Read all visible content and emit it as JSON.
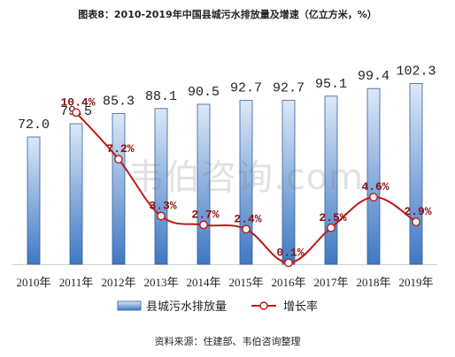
{
  "chart_data": {
    "type": "bar",
    "title": "图表8：2010-2019年中国县城污水排放量及增速（亿立方米，%）",
    "categories": [
      "2010年",
      "2011年",
      "2012年",
      "2013年",
      "2014年",
      "2015年",
      "2016年",
      "2017年",
      "2018年",
      "2019年"
    ],
    "series": [
      {
        "name": "县城污水排放量",
        "type": "bar",
        "values": [
          72.0,
          79.5,
          85.3,
          88.1,
          90.5,
          92.7,
          92.7,
          95.1,
          99.4,
          102.3
        ],
        "labels": [
          "72.0",
          "79.5",
          "85.3",
          "88.1",
          "90.5",
          "92.7",
          "92.7",
          "95.1",
          "99.4",
          "102.3"
        ]
      },
      {
        "name": "增长率",
        "type": "line",
        "values": [
          null,
          10.4,
          7.2,
          3.3,
          2.7,
          2.4,
          0.1,
          2.5,
          4.6,
          2.9
        ],
        "labels": [
          "",
          "10.4%",
          "7.2%",
          "3.3%",
          "2.7%",
          "2.4%",
          "0.1%",
          "2.5%",
          "4.6%",
          "2.9%"
        ]
      }
    ],
    "bar_range": [
      0,
      140
    ],
    "rate_range": [
      0,
      14
    ],
    "legend_position": "bottom",
    "grid": false,
    "colors": {
      "bar_fill_top": "#dce8f7",
      "bar_fill_bottom": "#3f78c4",
      "bar_stroke": "#2f5f9e",
      "line": "#c01818",
      "marker_fill": "#ffffff",
      "rate_text": "#8b1010"
    }
  },
  "source": "资料来源：住建部、韦伯咨询整理",
  "watermark": "韦伯咨询.com"
}
